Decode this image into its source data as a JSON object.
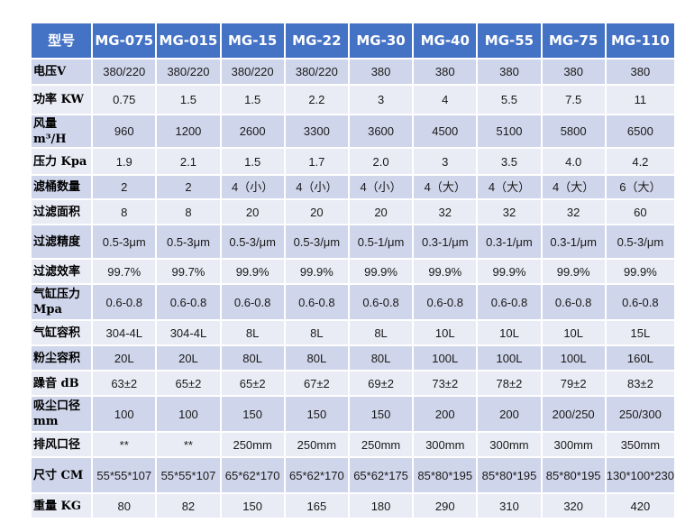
{
  "header": [
    "型号",
    "MG-075",
    "MG-015",
    "MG-15",
    "MG-22",
    "MG-30",
    "MG-40",
    "MG-55",
    "MG-75",
    "MG-110"
  ],
  "rows": [
    {
      "label": "电压V",
      "values": [
        "380/220",
        "380/220",
        "380/220",
        "380/220",
        "380",
        "380",
        "380",
        "380",
        "380"
      ]
    },
    {
      "label": "功率 KW",
      "values": [
        "0.75",
        "1.5",
        "1.5",
        "2.2",
        "3",
        "4",
        "5.5",
        "7.5",
        "11"
      ]
    },
    {
      "label": "风量 m³/H",
      "values": [
        "960",
        "1200",
        "2600",
        "3300",
        "3600",
        "4500",
        "5100",
        "5800",
        "6500"
      ]
    },
    {
      "label": "压力 Kpa",
      "values": [
        "1.9",
        "2.1",
        "1.5",
        "1.7",
        "2.0",
        "3",
        "3.5",
        "4.0",
        "4.2"
      ]
    },
    {
      "label": "滤桶数量",
      "values": [
        "2",
        "2",
        "4（小）",
        "4（小）",
        "4（小）",
        "4（大）",
        "4（大）",
        "4（大）",
        "6（大）"
      ]
    },
    {
      "label": "过滤面积",
      "values": [
        "8",
        "8",
        "20",
        "20",
        "20",
        "32",
        "32",
        "32",
        "60"
      ]
    },
    {
      "label": "过滤精度",
      "values": [
        "0.5-3μm",
        "0.5-3μm",
        "0.5-3/μm",
        "0.5-3/μm",
        "0.5-1/μm",
        "0.3-1/μm",
        "0.3-1/μm",
        "0.3-1/μm",
        "0.5-3/μm"
      ]
    },
    {
      "label": "过滤效率",
      "values": [
        "99.7%",
        "99.7%",
        "99.9%",
        "99.9%",
        "99.9%",
        "99.9%",
        "99.9%",
        "99.9%",
        "99.9%"
      ]
    },
    {
      "label": "气缸压力 Mpa",
      "values": [
        "0.6-0.8",
        "0.6-0.8",
        "0.6-0.8",
        "0.6-0.8",
        "0.6-0.8",
        "0.6-0.8",
        "0.6-0.8",
        "0.6-0.8",
        "0.6-0.8"
      ]
    },
    {
      "label": "气缸容积",
      "values": [
        "304-4L",
        "304-4L",
        "8L",
        "8L",
        "8L",
        "10L",
        "10L",
        "10L",
        "15L"
      ]
    },
    {
      "label": "粉尘容积",
      "values": [
        "20L",
        "20L",
        "80L",
        "80L",
        "80L",
        "100L",
        "100L",
        "100L",
        "160L"
      ]
    },
    {
      "label": "躁音 dB",
      "values": [
        "63±2",
        "65±2",
        "65±2",
        "67±2",
        "69±2",
        "73±2",
        "78±2",
        "79±2",
        "83±2"
      ]
    },
    {
      "label": "吸尘口径 mm",
      "values": [
        "100",
        "100",
        "150",
        "150",
        "150",
        "200",
        "200",
        "200/250",
        "250/300"
      ]
    },
    {
      "label": "排风口径",
      "values": [
        "**",
        "**",
        "250mm",
        "250mm",
        "250mm",
        "300mm",
        "300mm",
        "300mm",
        "350mm"
      ]
    },
    {
      "label": "尺寸 CM",
      "values": [
        "55*55*107",
        "55*55*107",
        "65*62*170",
        "65*62*170",
        "65*62*175",
        "85*80*195",
        "85*80*195",
        "85*80*195",
        "130*100*230"
      ]
    },
    {
      "label": "重量 KG",
      "values": [
        "80",
        "82",
        "150",
        "165",
        "180",
        "290",
        "310",
        "320",
        "420"
      ]
    }
  ]
}
